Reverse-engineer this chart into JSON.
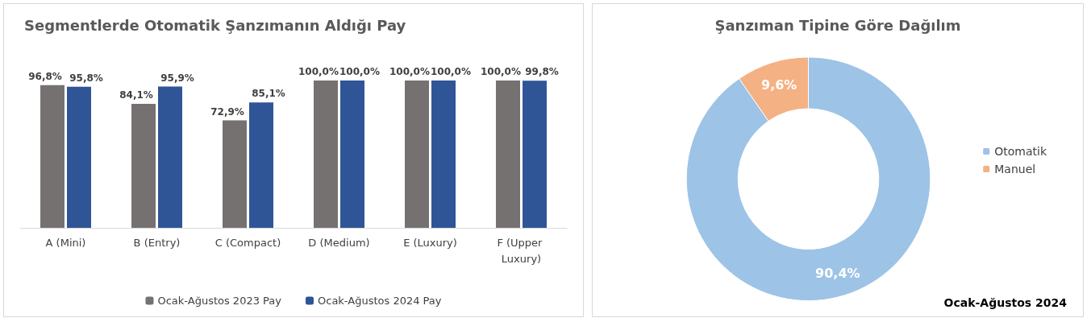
{
  "chart_data": [
    {
      "type": "bar",
      "title": "Segmentlerde Otomatik Şanzımanın Aldığı Pay",
      "categories": [
        "A (Mini)",
        "B (Entry)",
        "C (Compact)",
        "D (Medium)",
        "E (Luxury)",
        "F (Upper Luxury)"
      ],
      "legend": "bottom",
      "series": [
        {
          "name": "Ocak-Ağustos 2023 Pay",
          "color": "#767171",
          "values": [
            96.8,
            84.1,
            72.9,
            100.0,
            100.0,
            100.0
          ],
          "value_labels": [
            "96,8%",
            "84,1%",
            "72,9%",
            "100,0%",
            "100,0%",
            "100,0%"
          ]
        },
        {
          "name": "Ocak-Ağustos 2024 Pay",
          "color": "#2f5597",
          "values": [
            95.8,
            95.9,
            85.1,
            100.0,
            100.0,
            99.8
          ],
          "value_labels": [
            "95,8%",
            "95,9%",
            "85,1%",
            "100,0%",
            "100,0%",
            "99,8%"
          ]
        }
      ]
    },
    {
      "type": "donut",
      "title": "Şanzıman Tipine Göre Dağılım",
      "categories": [
        "Otomatik",
        "Manuel"
      ],
      "values": [
        90.4,
        9.6
      ],
      "colors": [
        "#9dc3e6",
        "#f4b183"
      ],
      "value_labels": [
        "90,4%",
        "9,6%"
      ],
      "legend": "right",
      "annotations": [
        "Ocak-Ağustos 2024"
      ]
    }
  ]
}
